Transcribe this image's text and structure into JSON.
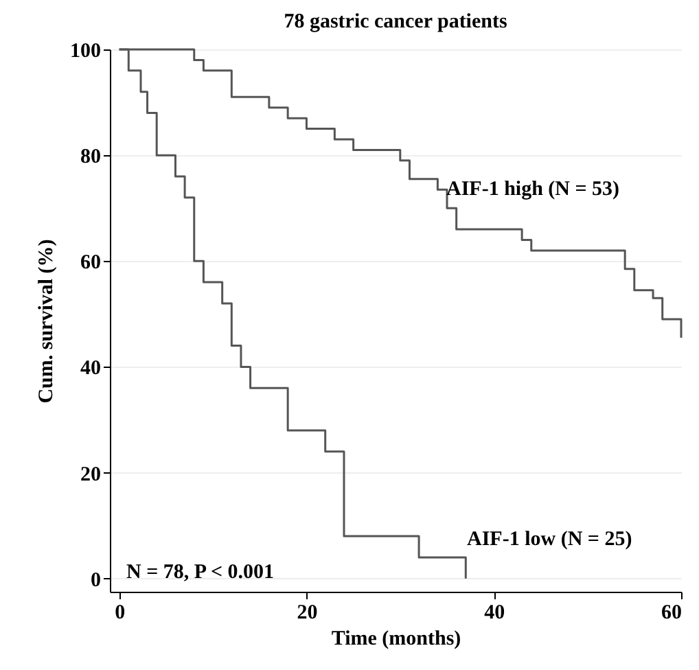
{
  "chart_data": {
    "type": "step",
    "title": "78 gastric cancer patients",
    "xlabel": "Time (months)",
    "ylabel": "Cum. survival (%)",
    "xlim": [
      -1,
      60
    ],
    "xticks": [
      0,
      20,
      40,
      60
    ],
    "ylim": [
      -2.5,
      100
    ],
    "yticks": [
      0,
      20,
      40,
      60,
      80,
      100
    ],
    "grid": "y",
    "legend": false,
    "series": [
      {
        "name": "AIF-1 high (N = 53)",
        "color": "#555555",
        "x": [
          0,
          8,
          9,
          12,
          16,
          18,
          20,
          23,
          25,
          30,
          31,
          34,
          35,
          36,
          43,
          44,
          54,
          55,
          57,
          58,
          60
        ],
        "values": [
          100,
          98,
          96,
          91,
          89,
          87,
          85,
          83,
          81,
          79,
          75.5,
          73.5,
          70,
          66,
          64,
          62,
          58.5,
          54.5,
          53,
          49,
          45.5
        ]
      },
      {
        "name": "AIF-1 low (N = 25)",
        "color": "#555555",
        "x": [
          0,
          1,
          2.3,
          3,
          4,
          6,
          7,
          8,
          9,
          11,
          12,
          13,
          14,
          18,
          22,
          24,
          32,
          37
        ],
        "values": [
          100,
          96,
          92,
          88,
          80,
          76,
          72,
          60,
          56,
          52,
          44,
          40,
          36,
          28,
          24,
          8,
          4,
          0
        ]
      }
    ],
    "annotations": [
      "N = 78, P < 0.001"
    ]
  }
}
